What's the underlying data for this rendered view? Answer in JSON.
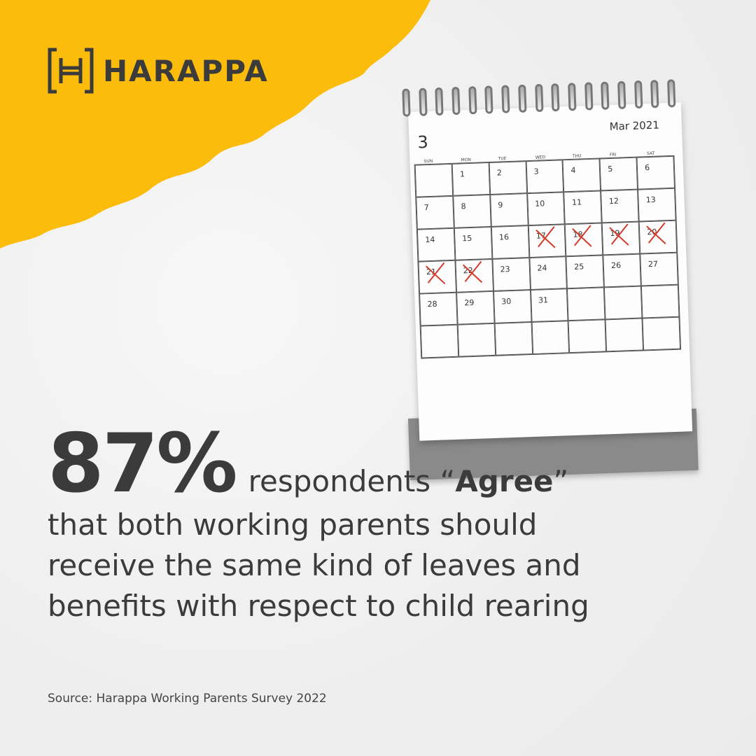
{
  "brand": {
    "name": "HARAPPA",
    "accent": "#fbbc0c"
  },
  "calendar": {
    "number": "3",
    "month": "Mar 2021",
    "days_of_week": [
      "SUN",
      "MON",
      "TUE",
      "WED",
      "THU",
      "FRI",
      "SAT"
    ],
    "weeks": [
      [
        "",
        "1",
        "2",
        "3",
        "4",
        "5",
        "6"
      ],
      [
        "7",
        "8",
        "9",
        "10",
        "11",
        "12",
        "13"
      ],
      [
        "14",
        "15",
        "16",
        "17",
        "18",
        "19",
        "20"
      ],
      [
        "21",
        "22",
        "23",
        "24",
        "25",
        "26",
        "27"
      ],
      [
        "28",
        "29",
        "30",
        "31",
        "",
        "",
        ""
      ],
      [
        "",
        "",
        "",
        "",
        "",
        "",
        ""
      ]
    ],
    "crossed_days": [
      "17",
      "18",
      "19",
      "20",
      "21",
      "22"
    ]
  },
  "headline": {
    "stat": "87%",
    "stat_rest_prefix": "respondents “",
    "agree": "Agree",
    "stat_rest_suffix": "”",
    "line1": "that both working parents should",
    "line2": "receive the same kind of leaves and",
    "line3": "benefits with respect to child rearing"
  },
  "source": "Source: Harappa Working Parents Survey 2022"
}
